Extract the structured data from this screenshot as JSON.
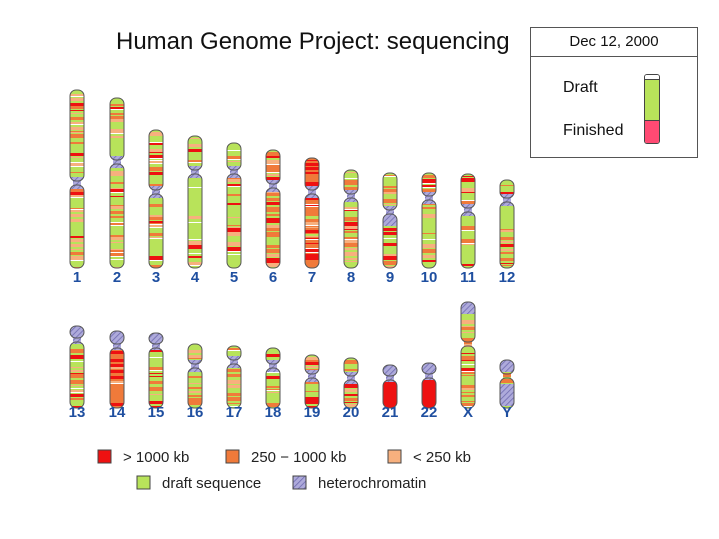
{
  "title": "Human Genome Project: sequencing",
  "status_box": {
    "date": "Dec 12, 2000",
    "draft_label": "Draft",
    "finished_label": "Finished"
  },
  "colors": {
    "gt1000": "#ee1111",
    "r250_1000": "#f07a3a",
    "lt250": "#f7b07e",
    "draft": "#b8e35a",
    "hetero": "#9d9ad0",
    "label": "#1f4fa0"
  },
  "legend": [
    {
      "key": "gt1000",
      "label": "> 1000 kb"
    },
    {
      "key": "r250_1000",
      "label": "250 − 1000 kb"
    },
    {
      "key": "lt250",
      "label": "< 250 kb"
    },
    {
      "key": "draft",
      "label": "draft sequence"
    },
    {
      "key": "hetero",
      "label": "heterochromatin"
    }
  ],
  "chromosomes": [
    {
      "label": "1",
      "style": "mix"
    },
    {
      "label": "2",
      "style": "mix"
    },
    {
      "label": "3",
      "style": "mix"
    },
    {
      "label": "4",
      "style": "draftmost"
    },
    {
      "label": "5",
      "style": "mix"
    },
    {
      "label": "6",
      "style": "orange"
    },
    {
      "label": "7",
      "style": "red"
    },
    {
      "label": "8",
      "style": "mix"
    },
    {
      "label": "9",
      "style": "hetmix"
    },
    {
      "label": "10",
      "style": "mix"
    },
    {
      "label": "11",
      "style": "mix"
    },
    {
      "label": "12",
      "style": "mix"
    },
    {
      "label": "13",
      "style": "mix"
    },
    {
      "label": "14",
      "style": "red"
    },
    {
      "label": "15",
      "style": "mix"
    },
    {
      "label": "16",
      "style": "orange"
    },
    {
      "label": "17",
      "style": "orange"
    },
    {
      "label": "18",
      "style": "draftmost"
    },
    {
      "label": "19",
      "style": "orange"
    },
    {
      "label": "20",
      "style": "orange"
    },
    {
      "label": "21",
      "style": "solidred"
    },
    {
      "label": "22",
      "style": "solidred"
    },
    {
      "label": "X",
      "style": "orange"
    },
    {
      "label": "Y",
      "style": "orange"
    }
  ]
}
